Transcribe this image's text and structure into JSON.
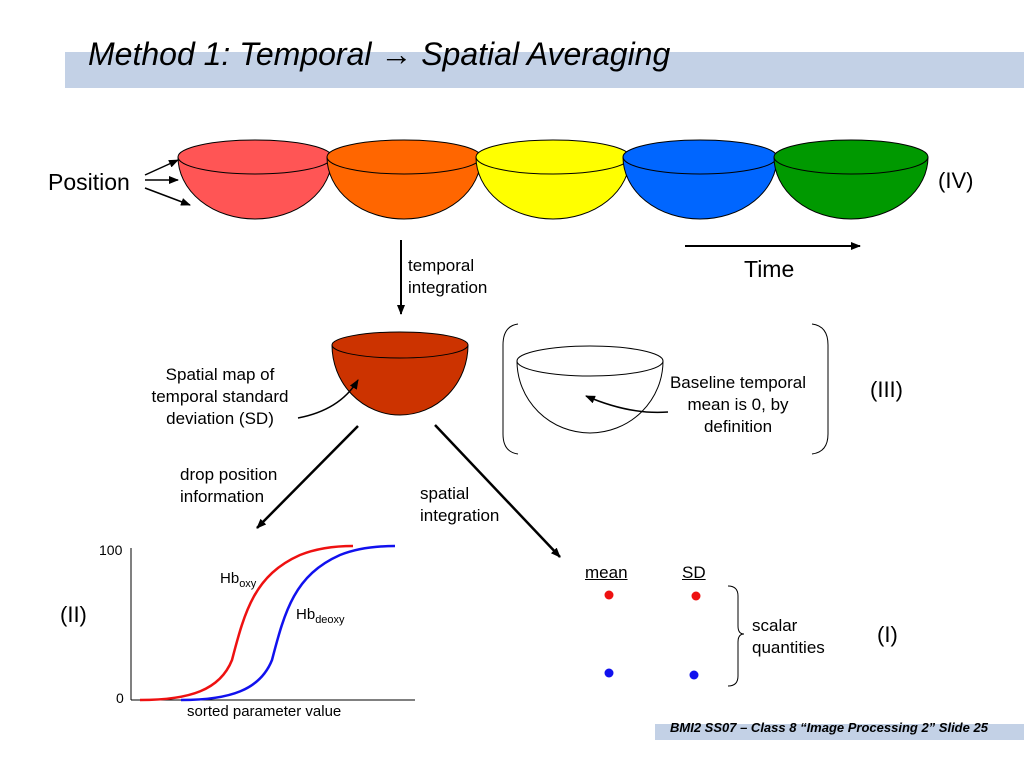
{
  "title": "Method 1: Temporal → Spatial Averaging",
  "labels": {
    "position": "Position",
    "stage_iv": "(IV)",
    "stage_iii": "(III)",
    "stage_ii": "(II)",
    "stage_i": "(I)",
    "time": "Time",
    "temporal_integration": [
      "temporal",
      "integration"
    ],
    "sd_map": [
      "Spatial map of",
      "temporal standard",
      "deviation (SD)"
    ],
    "baseline": [
      "Baseline temporal",
      "mean is 0, by",
      "definition"
    ],
    "drop_position": [
      "drop position",
      "information"
    ],
    "spatial_integration": [
      "spatial",
      "integration"
    ],
    "mean": "mean",
    "sd": "SD",
    "scalar": [
      "scalar",
      "quantities"
    ]
  },
  "bowls": [
    {
      "color": "#ff5555"
    },
    {
      "color": "#ff6600"
    },
    {
      "color": "#ffff00"
    },
    {
      "color": "#0066ff"
    },
    {
      "color": "#009900"
    }
  ],
  "sd_bowl_color": "#cc3300",
  "chart": {
    "y_ticks": [
      "100",
      "0"
    ],
    "xlabel": "sorted parameter value",
    "series": [
      {
        "name": "Hb",
        "sub": "oxy",
        "color": "#ee1111"
      },
      {
        "name": "Hb",
        "sub": "deoxy",
        "color": "#1111ee"
      }
    ]
  },
  "footer": "BMI2 SS07 – Class 8 “Image Processing 2” Slide 25"
}
